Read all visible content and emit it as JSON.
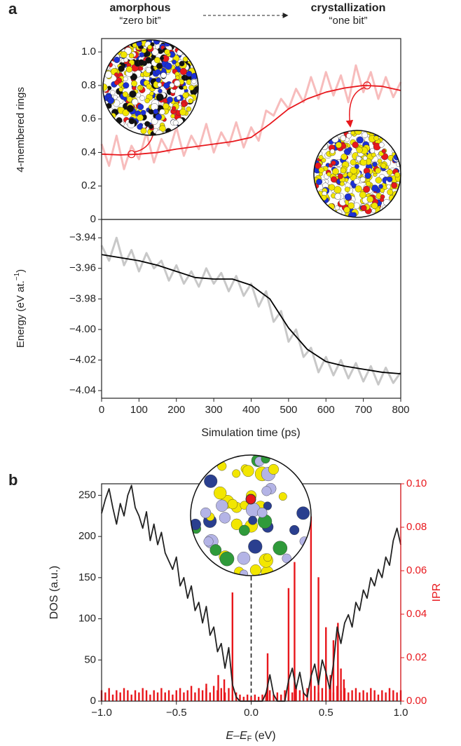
{
  "chart_data": [
    {
      "type": "line",
      "panel_label": "a",
      "annotations": [
        "amorphous",
        "“zero bit”",
        "crystallization",
        "“one bit”"
      ],
      "ylabel": "4-membered rings",
      "xlim": [
        0,
        800
      ],
      "ylim": [
        0,
        1.08
      ],
      "yticks": [
        0,
        0.2,
        0.4,
        0.6,
        0.8,
        {
          "value": 1.0,
          "label": "1.0"
        }
      ],
      "series": [
        {
          "color": "#f7bcbc",
          "x": [
            0,
            20,
            40,
            60,
            80,
            100,
            120,
            140,
            160,
            180,
            200,
            220,
            240,
            260,
            280,
            300,
            320,
            340,
            360,
            380,
            400,
            420,
            440,
            460,
            480,
            500,
            520,
            540,
            560,
            580,
            600,
            620,
            640,
            660,
            680,
            700,
            720,
            740,
            760,
            780,
            800
          ],
          "values": [
            0.45,
            0.32,
            0.5,
            0.3,
            0.44,
            0.36,
            0.52,
            0.34,
            0.48,
            0.4,
            0.55,
            0.38,
            0.5,
            0.42,
            0.57,
            0.4,
            0.52,
            0.44,
            0.58,
            0.43,
            0.55,
            0.47,
            0.65,
            0.62,
            0.72,
            0.66,
            0.78,
            0.7,
            0.85,
            0.72,
            0.88,
            0.74,
            0.86,
            0.7,
            0.92,
            0.76,
            0.88,
            0.72,
            0.85,
            0.73,
            0.82
          ]
        },
        {
          "color": "#e8171c",
          "x": [
            0,
            50,
            100,
            150,
            200,
            250,
            300,
            350,
            400,
            450,
            500,
            550,
            600,
            650,
            700,
            750,
            800
          ],
          "values": [
            0.39,
            0.385,
            0.39,
            0.4,
            0.42,
            0.435,
            0.45,
            0.465,
            0.49,
            0.57,
            0.66,
            0.72,
            0.76,
            0.785,
            0.8,
            0.795,
            0.77
          ]
        }
      ],
      "highlight": {
        "x": [
          80,
          710
        ],
        "y": [
          0.39,
          0.8
        ],
        "color": "#e8171c"
      }
    },
    {
      "type": "line",
      "ylabel_parts": [
        "Energy (eV at.",
        "−1",
        ")"
      ],
      "xlabel": "Simulation time (ps)",
      "xlim": [
        0,
        800
      ],
      "xticks": [
        0,
        100,
        200,
        300,
        400,
        500,
        600,
        700,
        800
      ],
      "ylim": [
        -4.045,
        -3.928
      ],
      "yticks": [
        {
          "value": -3.94,
          "label": "−3.94"
        },
        {
          "value": -3.96,
          "label": "−3.96"
        },
        {
          "value": -3.98,
          "label": "−3.98"
        },
        {
          "value": -4.0,
          "label": "−4.00"
        },
        {
          "value": -4.02,
          "label": "−4.02"
        },
        {
          "value": -4.04,
          "label": "−4.04"
        }
      ],
      "series": [
        {
          "color": "#c8c8c8",
          "x": [
            0,
            20,
            40,
            60,
            80,
            100,
            120,
            140,
            160,
            180,
            200,
            220,
            240,
            260,
            280,
            300,
            320,
            340,
            360,
            380,
            400,
            420,
            440,
            460,
            480,
            500,
            520,
            540,
            560,
            580,
            600,
            620,
            640,
            660,
            680,
            700,
            720,
            740,
            760,
            780,
            800
          ],
          "values": [
            -3.945,
            -3.955,
            -3.94,
            -3.958,
            -3.948,
            -3.962,
            -3.95,
            -3.96,
            -3.955,
            -3.968,
            -3.958,
            -3.97,
            -3.962,
            -3.972,
            -3.96,
            -3.97,
            -3.963,
            -3.975,
            -3.965,
            -3.978,
            -3.97,
            -3.985,
            -3.975,
            -3.995,
            -3.988,
            -4.008,
            -4.0,
            -4.018,
            -4.012,
            -4.028,
            -4.018,
            -4.03,
            -4.02,
            -4.032,
            -4.022,
            -4.034,
            -4.024,
            -4.036,
            -4.025,
            -4.035,
            -4.028
          ]
        },
        {
          "color": "#000000",
          "x": [
            0,
            50,
            100,
            150,
            200,
            250,
            300,
            350,
            400,
            450,
            500,
            550,
            600,
            650,
            700,
            750,
            800
          ],
          "values": [
            -3.951,
            -3.953,
            -3.955,
            -3.958,
            -3.962,
            -3.966,
            -3.967,
            -3.967,
            -3.971,
            -3.98,
            -3.999,
            -4.013,
            -4.021,
            -4.024,
            -4.026,
            -4.028,
            -4.029
          ]
        }
      ]
    },
    {
      "type": "line",
      "panel_label": "b",
      "ylabel": "DOS (a.u.)",
      "y2label": "IPR",
      "y2color": "#e8171c",
      "xlabel_parts": [
        "E–E",
        "F",
        "(eV)"
      ],
      "xlim": [
        -1,
        1
      ],
      "xticks": [
        {
          "value": -1,
          "label": "−1.0"
        },
        {
          "value": -0.5,
          "label": "−0.5"
        },
        {
          "value": 0,
          "label": "0.0"
        },
        {
          "value": 0.5,
          "label": "0.5"
        },
        {
          "value": 1,
          "label": "1.0"
        }
      ],
      "ylim": [
        0,
        264
      ],
      "yticks": [
        0,
        50,
        100,
        150,
        200,
        250
      ],
      "y2lim": [
        0,
        0.1
      ],
      "y2ticks": [
        {
          "value": 0,
          "label": "0.00"
        },
        {
          "value": 0.02,
          "label": "0.02"
        },
        {
          "value": 0.04,
          "label": "0.04"
        },
        {
          "value": 0.06,
          "label": "0.06"
        },
        {
          "value": 0.08,
          "label": "0.08"
        },
        {
          "value": 0.1,
          "label": "0.10"
        }
      ],
      "x": [
        -1,
        -0.975,
        -0.95,
        -0.925,
        -0.9,
        -0.875,
        -0.85,
        -0.825,
        -0.8,
        -0.775,
        -0.75,
        -0.725,
        -0.7,
        -0.675,
        -0.65,
        -0.625,
        -0.6,
        -0.575,
        -0.55,
        -0.525,
        -0.5,
        -0.475,
        -0.45,
        -0.425,
        -0.4,
        -0.375,
        -0.35,
        -0.325,
        -0.3,
        -0.275,
        -0.25,
        -0.225,
        -0.2,
        -0.175,
        -0.15,
        -0.125,
        -0.1,
        -0.075,
        -0.05,
        -0.025,
        0,
        0.025,
        0.05,
        0.075,
        0.1,
        0.125,
        0.15,
        0.175,
        0.2,
        0.225,
        0.25,
        0.275,
        0.3,
        0.325,
        0.35,
        0.375,
        0.4,
        0.425,
        0.45,
        0.475,
        0.5,
        0.525,
        0.55,
        0.575,
        0.6,
        0.625,
        0.65,
        0.675,
        0.7,
        0.725,
        0.75,
        0.775,
        0.8,
        0.825,
        0.85,
        0.875,
        0.9,
        0.925,
        0.95,
        0.975,
        1
      ],
      "series": [
        {
          "type": "bar",
          "axis": "y2",
          "color": "#e8171c",
          "values": [
            0.005,
            0.004,
            0.006,
            0.003,
            0.005,
            0.004,
            0.006,
            0.005,
            0.003,
            0.005,
            0.004,
            0.006,
            0.005,
            0.003,
            0.005,
            0.004,
            0.006,
            0.004,
            0.005,
            0.003,
            0.005,
            0.006,
            0.004,
            0.005,
            0.007,
            0.004,
            0.006,
            0.005,
            0.006,
            0.004,
            0.007,
            0.005,
            0.006,
            0.004,
            0.006,
            0.003,
            0.004,
            0.003,
            0.002,
            0.003,
            0.002,
            0.003,
            0.002,
            0.003,
            0.004,
            0.005,
            0.003,
            0.004,
            0.003,
            0.005,
            0.006,
            0.004,
            0.007,
            0.005,
            0.004,
            0.006,
            0.005,
            0.007,
            0.004,
            0.006,
            0.005,
            0.006,
            0.004,
            0.007,
            0.005,
            0.006,
            0.004,
            0.005,
            0.006,
            0.004,
            0.005,
            0.004,
            0.006,
            0.005,
            0.003,
            0.005,
            0.004,
            0.006,
            0.005,
            0.004,
            0.005
          ]
        },
        {
          "type": "bar",
          "axis": "y2",
          "color": "#e8171c",
          "x": [
            -0.3,
            -0.22,
            -0.18,
            -0.125,
            0.11,
            0.25,
            0.29,
            0.4,
            0.45,
            0.5,
            0.53,
            0.55,
            0.58,
            0.6,
            0.62
          ],
          "values": [
            0.008,
            0.012,
            0.01,
            0.05,
            0.022,
            0.052,
            0.064,
            0.085,
            0.057,
            0.034,
            0.012,
            0.028,
            0.036,
            0.015,
            0.01
          ]
        },
        {
          "color": "#222222",
          "values": [
            228,
            245,
            258,
            235,
            215,
            240,
            225,
            250,
            262,
            235,
            225,
            210,
            230,
            195,
            215,
            190,
            205,
            180,
            170,
            160,
            175,
            140,
            150,
            125,
            140,
            110,
            120,
            95,
            115,
            80,
            90,
            60,
            70,
            40,
            65,
            20,
            5,
            0,
            0,
            0,
            0,
            0,
            0,
            0,
            10,
            32,
            8,
            0,
            0,
            0,
            25,
            40,
            15,
            35,
            10,
            5,
            30,
            45,
            20,
            50,
            35,
            15,
            45,
            90,
            70,
            95,
            105,
            90,
            120,
            110,
            135,
            125,
            150,
            140,
            160,
            150,
            175,
            165,
            195,
            210,
            190
          ]
        }
      ]
    }
  ]
}
